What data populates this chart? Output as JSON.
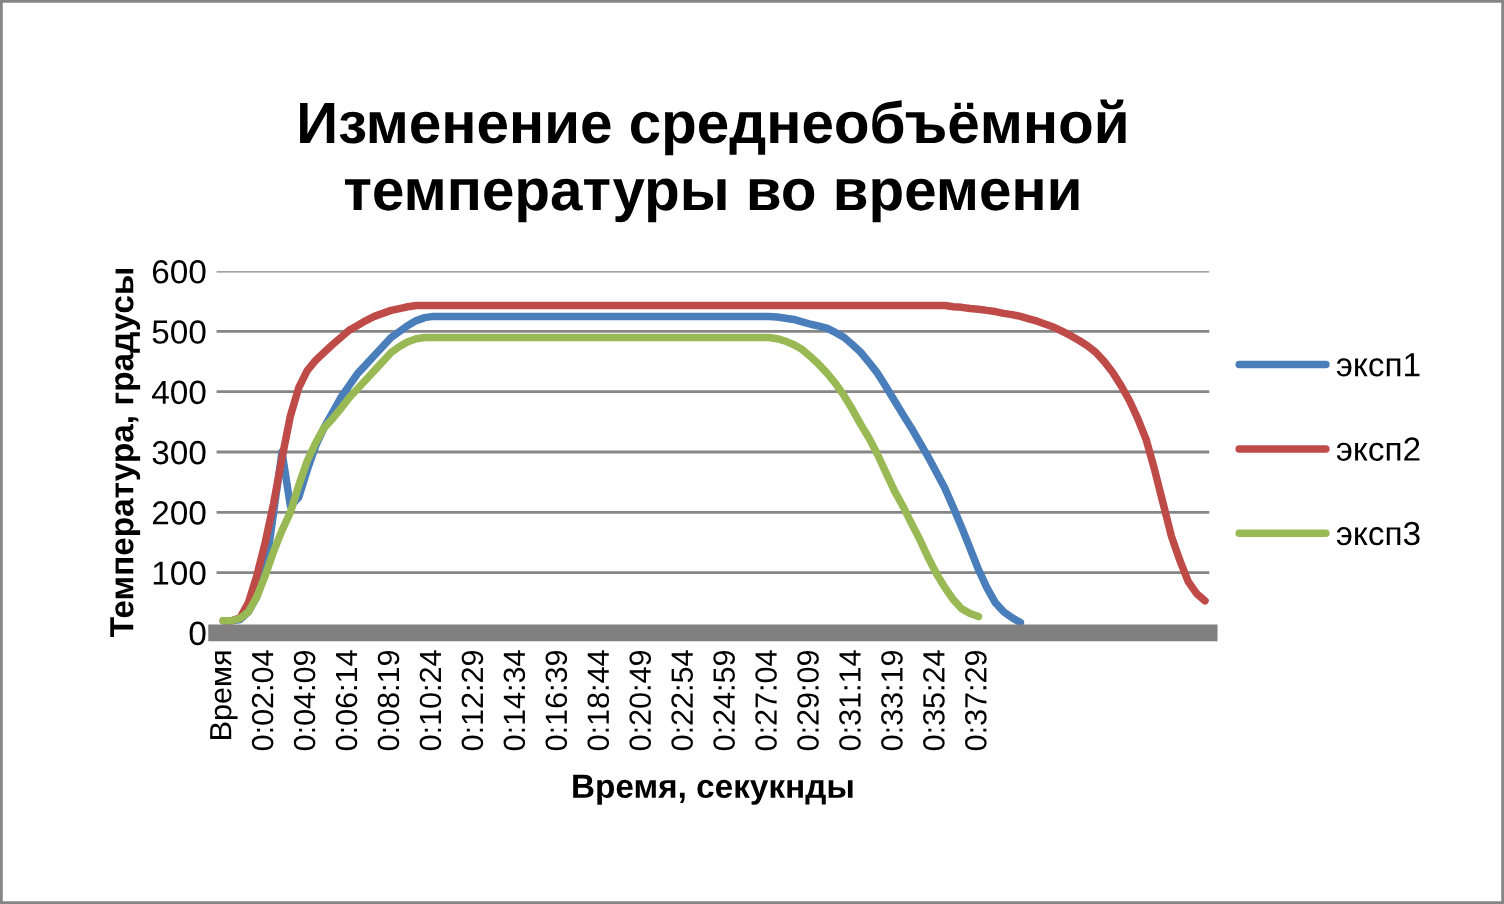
{
  "chart_data": {
    "type": "line",
    "title": "Изменение среднеобъёмной\nтемпературы во времени",
    "xlabel": "Время, секукнды",
    "ylabel": "Температура, градусы",
    "categories": [
      "Время",
      null,
      null,
      null,
      null,
      "0:02:04",
      null,
      null,
      null,
      null,
      "0:04:09",
      null,
      null,
      null,
      null,
      "0:06:14",
      null,
      null,
      null,
      null,
      "0:08:19",
      null,
      null,
      null,
      null,
      "0:10:24",
      null,
      null,
      null,
      null,
      "0:12:29",
      null,
      null,
      null,
      null,
      "0:14:34",
      null,
      null,
      null,
      null,
      "0:16:39",
      null,
      null,
      null,
      null,
      "0:18:44",
      null,
      null,
      null,
      null,
      "0:20:49",
      null,
      null,
      null,
      null,
      "0:22:54",
      null,
      null,
      null,
      null,
      "0:24:59",
      null,
      null,
      null,
      null,
      "0:27:04",
      null,
      null,
      null,
      null,
      "0:29:09",
      null,
      null,
      null,
      null,
      "0:31:14",
      null,
      null,
      null,
      null,
      "0:33:19",
      null,
      null,
      null,
      null,
      "0:35:24",
      null,
      null,
      null,
      null,
      "0:37:29",
      null,
      null,
      null,
      null,
      null,
      null,
      null,
      null,
      null,
      null,
      null,
      null,
      null,
      null,
      null,
      null,
      null,
      null,
      null,
      null,
      null,
      null,
      null,
      null,
      null,
      null,
      null
    ],
    "series": [
      {
        "name": "эксп1",
        "color": "#4a7ebb",
        "values": [
          20,
          20,
          22,
          35,
          60,
          100,
          200,
          300,
          210,
          225,
          270,
          310,
          340,
          365,
          390,
          410,
          430,
          445,
          460,
          475,
          490,
          500,
          510,
          518,
          523,
          525,
          525,
          525,
          525,
          525,
          525,
          525,
          525,
          525,
          525,
          525,
          525,
          525,
          525,
          525,
          525,
          525,
          525,
          525,
          525,
          525,
          525,
          525,
          525,
          525,
          525,
          525,
          525,
          525,
          525,
          525,
          525,
          525,
          525,
          525,
          525,
          525,
          525,
          525,
          525,
          525,
          524,
          522,
          520,
          516,
          512,
          509,
          505,
          498,
          490,
          478,
          465,
          448,
          430,
          408,
          385,
          362,
          340,
          316,
          292,
          266,
          240,
          208,
          175,
          140,
          105,
          75,
          50,
          35,
          25,
          17,
          null,
          null,
          null,
          null,
          null,
          null,
          null,
          null,
          null,
          null,
          null,
          null,
          null,
          null,
          null,
          null,
          null,
          null,
          null,
          null,
          null,
          null
        ]
      },
      {
        "name": "эксп2",
        "color": "#be4b48",
        "values": [
          20,
          20,
          25,
          50,
          95,
          150,
          215,
          290,
          360,
          407,
          435,
          452,
          465,
          478,
          490,
          502,
          510,
          518,
          525,
          530,
          535,
          538,
          541,
          543,
          543,
          543,
          543,
          543,
          543,
          543,
          543,
          543,
          543,
          543,
          543,
          543,
          543,
          543,
          543,
          543,
          543,
          543,
          543,
          543,
          543,
          543,
          543,
          543,
          543,
          543,
          543,
          543,
          543,
          543,
          543,
          543,
          543,
          543,
          543,
          543,
          543,
          543,
          543,
          543,
          543,
          543,
          543,
          543,
          543,
          543,
          543,
          543,
          543,
          543,
          543,
          543,
          543,
          543,
          543,
          543,
          543,
          543,
          543,
          543,
          543,
          543,
          543,
          541,
          540,
          538,
          537,
          535,
          533,
          530,
          528,
          525,
          521,
          517,
          512,
          507,
          500,
          493,
          485,
          476,
          465,
          450,
          432,
          410,
          385,
          355,
          320,
          270,
          215,
          160,
          120,
          85,
          65,
          53
        ]
      },
      {
        "name": "эксп3",
        "color": "#98b954",
        "values": [
          20,
          20,
          24,
          35,
          60,
          95,
          135,
          170,
          200,
          245,
          285,
          315,
          340,
          355,
          372,
          390,
          405,
          420,
          435,
          450,
          465,
          475,
          483,
          488,
          490,
          490,
          490,
          490,
          490,
          490,
          490,
          490,
          490,
          490,
          490,
          490,
          490,
          490,
          490,
          490,
          490,
          490,
          490,
          490,
          490,
          490,
          490,
          490,
          490,
          490,
          490,
          490,
          490,
          490,
          490,
          490,
          490,
          490,
          490,
          490,
          490,
          490,
          490,
          490,
          490,
          490,
          488,
          484,
          478,
          470,
          458,
          445,
          430,
          413,
          393,
          370,
          345,
          322,
          295,
          265,
          235,
          210,
          182,
          155,
          125,
          98,
          75,
          55,
          40,
          32,
          27,
          null,
          null,
          null,
          null,
          null,
          null,
          null,
          null,
          null,
          null,
          null,
          null,
          null,
          null,
          null,
          null,
          null,
          null,
          null,
          null,
          null,
          null,
          null,
          null,
          null,
          null,
          null
        ]
      }
    ],
    "ylim": [
      0,
      600
    ],
    "yticks": [
      0,
      100,
      200,
      300,
      400,
      500,
      600
    ],
    "grid": "y",
    "legend": "right",
    "marker": "none",
    "line_style": "solid"
  }
}
